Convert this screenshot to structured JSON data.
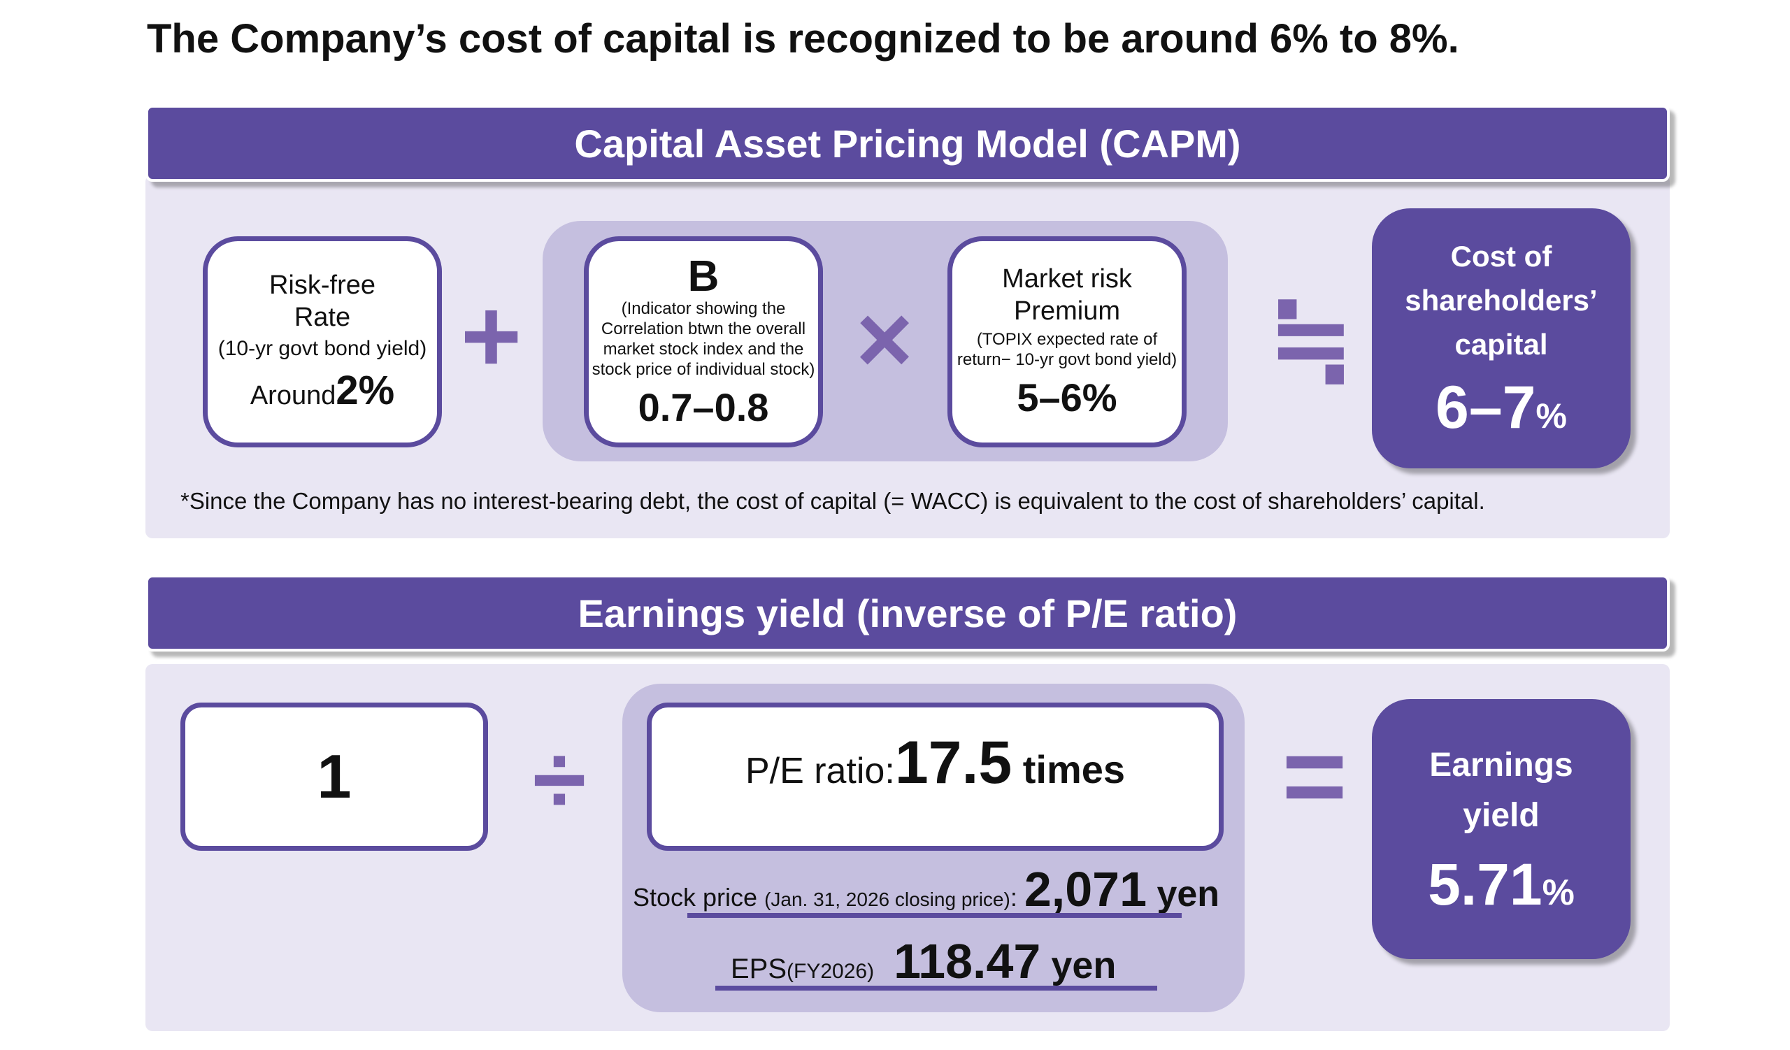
{
  "headline": "The Company’s cost of capital is recognized to be around 6% to 8%.",
  "capm": {
    "banner": "Capital Asset Pricing Model (CAPM)",
    "risk_free": {
      "line1": "Risk-free",
      "line2": "Rate",
      "sub": "(10-yr govt bond yield)",
      "prefix": "Around",
      "value": "2%"
    },
    "plus_symbol": "+",
    "beta": {
      "symbol": "Β",
      "desc1": "(Indicator showing the",
      "desc2": "Correlation btwn the overall",
      "desc3": "market stock index and the",
      "desc4": "stock price of individual stock)",
      "value": "0.7–0.8"
    },
    "times_symbol": "×",
    "market_risk": {
      "line1": "Market risk",
      "line2": "Premium",
      "sub1": "(TOPIX expected rate of",
      "sub2": "return− 10-yr govt bond yield)",
      "value": "5–6%"
    },
    "approx_symbol": "≒",
    "result": {
      "line1": "Cost of",
      "line2": "shareholders’",
      "line3": "capital",
      "value": "6–7",
      "unit": "%"
    },
    "note": "*Since the Company has no interest-bearing debt, the cost of capital (= WACC) is equivalent to the cost of shareholders’ capital."
  },
  "earnings": {
    "banner": "Earnings yield (inverse of P/E ratio)",
    "one": "1",
    "divide_symbol": "÷",
    "pe": {
      "label": "P/E ratio: ",
      "value": "17.5",
      "unit": " times"
    },
    "stock_price": {
      "label": "Stock price ",
      "sub": "(Jan. 31, 2026 closing price)",
      "colon": ": ",
      "value": "2,071",
      "unit": " yen"
    },
    "eps": {
      "label": "EPS",
      "sub": "(FY2026)",
      "value": "118.47",
      "unit": " yen"
    },
    "equals_symbol": "=",
    "result": {
      "line1": "Earnings",
      "line2": "yield",
      "value": "5.71",
      "unit": "%"
    }
  }
}
